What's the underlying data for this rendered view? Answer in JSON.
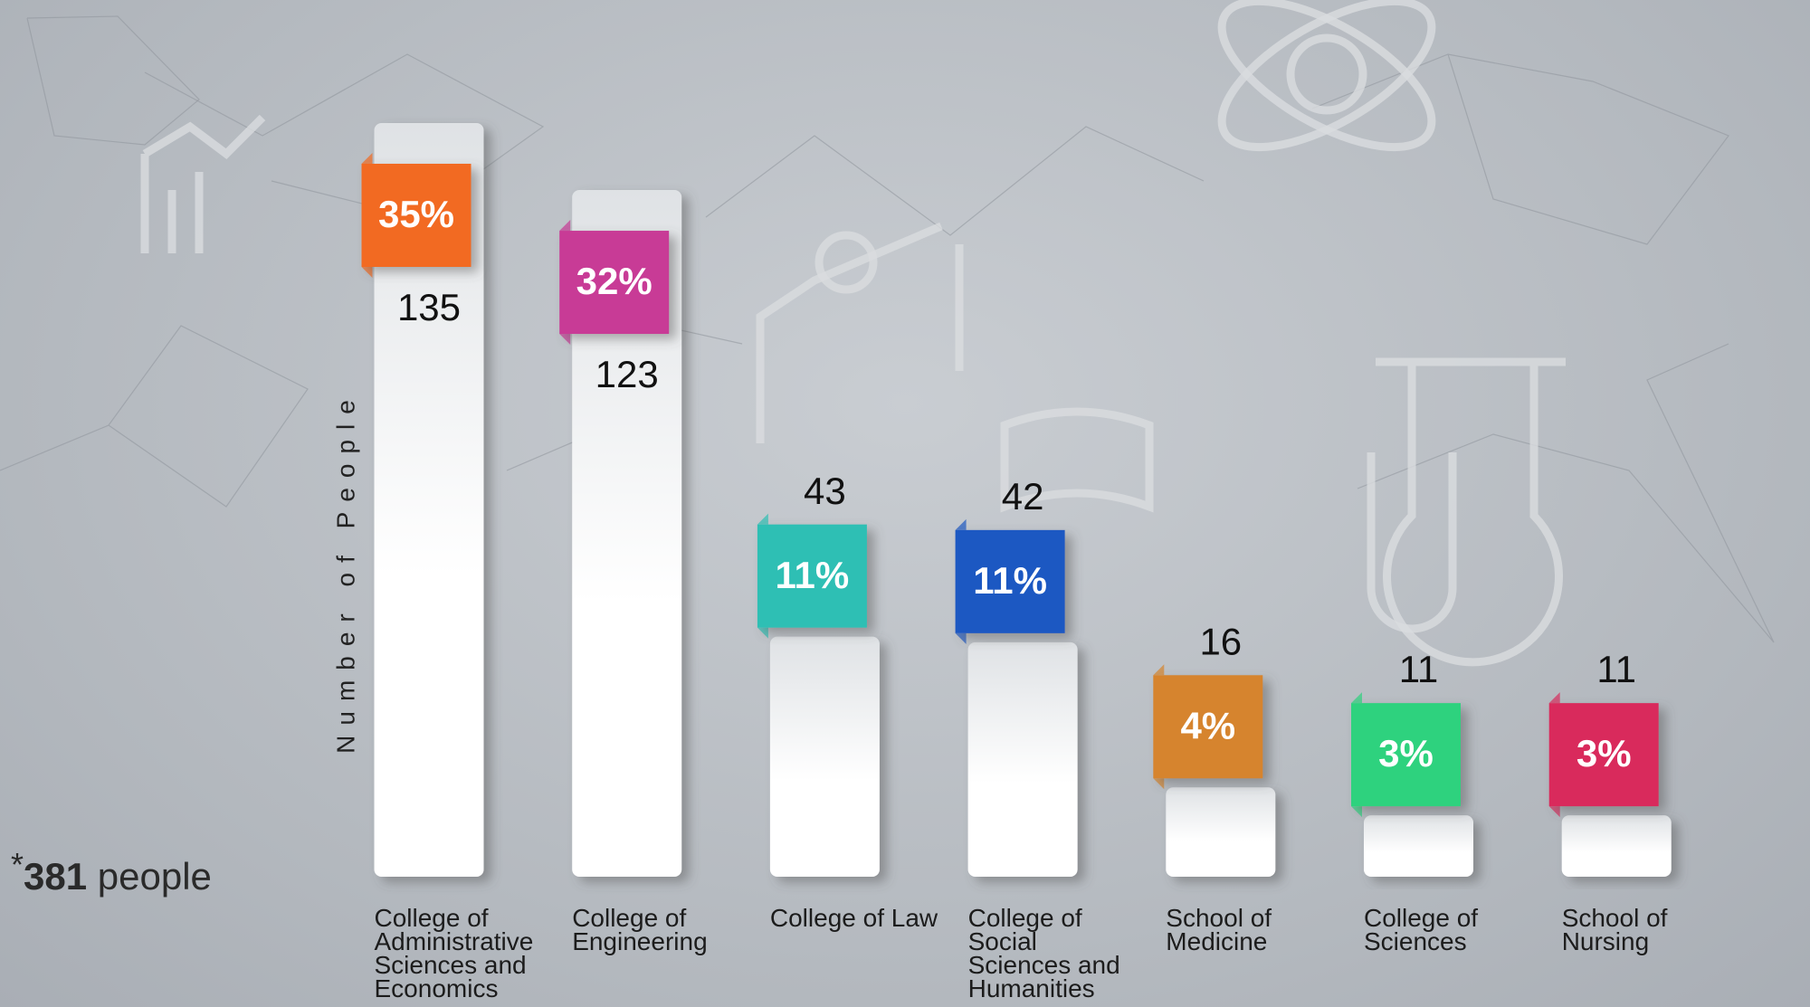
{
  "chart_data": {
    "type": "bar",
    "y_label": "Number of People",
    "categories": [
      "College of Administrative Sciences and Economics",
      "College of Engineering",
      "College of Law",
      "College of Social Sciences and Humanities",
      "School of Medicine",
      "College of Sciences",
      "School of Nursing"
    ],
    "values": [
      135,
      123,
      43,
      42,
      16,
      11,
      11
    ],
    "shares": {
      "values": [
        35,
        32,
        11,
        11,
        4,
        3,
        3
      ],
      "value_labels": [
        "35%",
        "32%",
        "11%",
        "11%",
        "4%",
        "3%",
        "3%"
      ]
    },
    "colors": [
      "#f26b21",
      "#c83a96",
      "#2fbfb4",
      "#1f58c2",
      "#d6842e",
      "#2ed27e",
      "#d92c5c"
    ],
    "total": {
      "prefix": "*",
      "value": 381,
      "unit": "people"
    }
  }
}
